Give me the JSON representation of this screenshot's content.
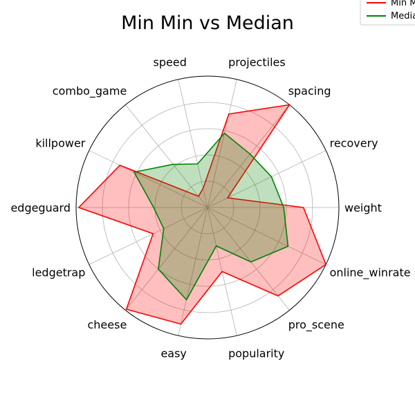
{
  "chart_data": {
    "type": "radar",
    "title": "Min Min vs Median",
    "categories": [
      "weight",
      "recovery",
      "spacing",
      "projectiles",
      "speed",
      "combo_game",
      "killpower",
      "edgeguard",
      "ledgetrap",
      "cheese",
      "easy",
      "popularity",
      "pro_scene",
      "online_winrate"
    ],
    "rmax": 10,
    "grid_levels": [
      2,
      4,
      6,
      8
    ],
    "grid": true,
    "legend_position": "top-right",
    "series": [
      {
        "name": "Min Min",
        "color": "#ff0000",
        "fill": "#ff0000",
        "values": [
          7.3,
          1.7,
          10,
          7.3,
          1.5,
          1.1,
          7.4,
          9.8,
          4.6,
          9.9,
          9.1,
          5.0,
          8.6,
          10
        ]
      },
      {
        "name": "Median",
        "color": "#008000",
        "fill": "#008000",
        "values": [
          5.8,
          5.4,
          5.2,
          5.8,
          3.4,
          4.2,
          6.2,
          4.1,
          3.7,
          6.0,
          7.2,
          3.0,
          5.3,
          6.8
        ]
      }
    ]
  }
}
